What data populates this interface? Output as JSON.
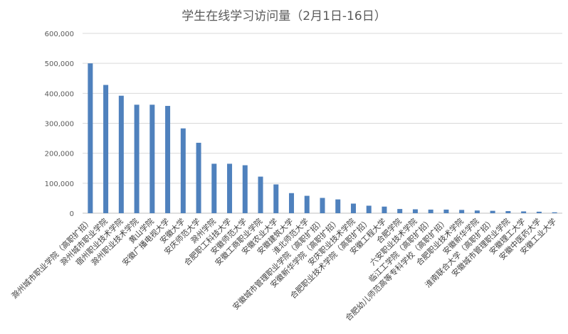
{
  "chart_data": {
    "type": "bar",
    "title": "学生在线学习访问量（2月1日-16日）",
    "xlabel": "",
    "ylabel": "",
    "ylim": [
      0,
      600000
    ],
    "yticks": [
      "0",
      "100,000",
      "200,000",
      "300,000",
      "400,000",
      "500,000",
      "600,000"
    ],
    "ytick_values": [
      0,
      100000,
      200000,
      300000,
      400000,
      500000,
      600000
    ],
    "grid": true,
    "legend": "none",
    "bar_color": "#4f81bd",
    "categories": [
      "滁州城市职业学院（高职扩招）",
      "滁州城市职业学院",
      "宿州职业技术学院",
      "滁州职业技术学院",
      "黄山学院",
      "安徽广播电视大学",
      "安徽大学",
      "安庆师范大学",
      "滁州学院",
      "合肥职工科技大学",
      "安徽师范大学",
      "安徽工商职业学院",
      "安徽农业大学",
      "安徽建筑大学",
      "淮北师范大学",
      "安徽城市管理职业学院（高职扩招）",
      "安徽新华学院（高职扩招）",
      "安庆职业技术学院",
      "合肥职业技术学院（高职扩招）",
      "安徽工程大学",
      "合肥学院",
      "六安职业技术学院",
      "临江工学院（高职扩招）",
      "合肥幼儿师范高等专科学校（高职扩招）",
      "合肥职业技术学院",
      "安徽新华学院",
      "淮南联合大学（高职扩招）",
      "安徽城市管理职业学院",
      "安徽理工大学",
      "安徽中医药大学",
      "安徽工业大学"
    ],
    "values": [
      500000,
      428000,
      392000,
      362000,
      362000,
      358000,
      283000,
      235000,
      165000,
      165000,
      160000,
      122000,
      96000,
      67000,
      58000,
      51000,
      46000,
      32000,
      25000,
      22000,
      14000,
      13000,
      12000,
      12000,
      11000,
      9000,
      8000,
      7000,
      6000,
      5000,
      3000
    ]
  }
}
